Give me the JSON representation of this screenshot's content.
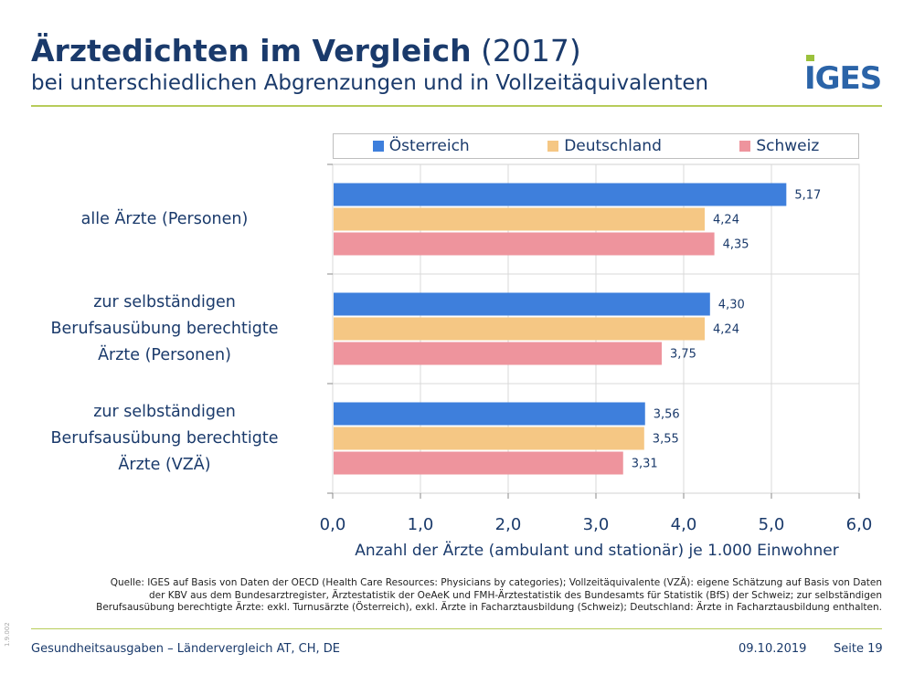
{
  "header": {
    "title_bold": "Ärztedichten im Vergleich",
    "title_year": "(2017)",
    "subtitle": "bei unterschiedlichen Abgrenzungen und in Vollzeitäquivalenten",
    "logo": "IGES"
  },
  "chart_data": {
    "type": "bar",
    "orientation": "horizontal",
    "categories": [
      [
        "alle Ärzte (Personen)"
      ],
      [
        "zur selbständigen",
        "Berufsausübung berechtigte",
        "Ärzte (Personen)"
      ],
      [
        "zur selbständigen",
        "Berufsausübung berechtigte",
        "Ärzte (VZÄ)"
      ]
    ],
    "series": [
      {
        "name": "Österreich",
        "color": "#3e7fdc",
        "values": [
          5.17,
          4.3,
          3.56
        ],
        "labels": [
          "5,17",
          "4,30",
          "3,56"
        ]
      },
      {
        "name": "Deutschland",
        "color": "#f5c784",
        "values": [
          4.24,
          4.24,
          3.55
        ],
        "labels": [
          "4,24",
          "4,24",
          "3,55"
        ]
      },
      {
        "name": "Schweiz",
        "color": "#ee949d",
        "values": [
          4.35,
          3.75,
          3.31
        ],
        "labels": [
          "4,35",
          "3,75",
          "3,31"
        ]
      }
    ],
    "xlabel": "Anzahl der Ärzte (ambulant und stationär) je 1.000 Einwohner",
    "xlim": [
      0,
      6
    ],
    "xticks": [
      "0,0",
      "1,0",
      "2,0",
      "3,0",
      "4,0",
      "5,0",
      "6,0"
    ],
    "grid": true,
    "legend_position": "top"
  },
  "source": {
    "lines": [
      "Quelle: IGES auf Basis von Daten der OECD (Health Care Resources: Physicians by categories); Vollzeitäquivalente (VZÄ): eigene Schätzung auf Basis von Daten",
      "der KBV aus dem Bundesarztregister, Ärztestatistik der OeAeK und FMH-Ärztestatistik des Bundesamts für Statistik (BfS) der Schweiz; zur selbständigen",
      "Berufsausübung berechtigte Ärzte: exkl. Turnusärzte (Österreich), exkl. Ärzte in Facharztausbildung (Schweiz); Deutschland: Ärzte in Facharztausbildung enthalten."
    ]
  },
  "footer": {
    "version": "1.9.002",
    "left": "Gesundheitsausgaben – Ländervergleich AT, CH, DE",
    "date": "09.10.2019",
    "page": "Seite 19"
  }
}
